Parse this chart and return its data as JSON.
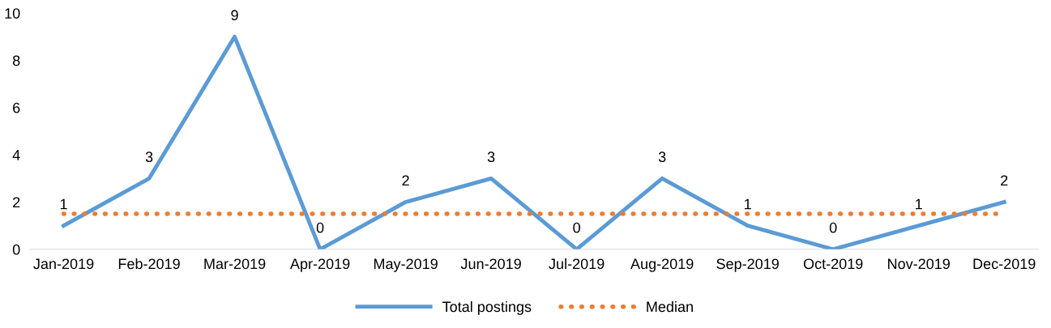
{
  "chart_data": {
    "type": "line",
    "categories": [
      "Jan-2019",
      "Feb-2019",
      "Mar-2019",
      "Apr-2019",
      "May-2019",
      "Jun-2019",
      "Jul-2019",
      "Aug-2019",
      "Sep-2019",
      "Oct-2019",
      "Nov-2019",
      "Dec-2019"
    ],
    "series": [
      {
        "name": "Total postings",
        "color": "#5b9bd5",
        "line_style": "solid",
        "data_labels": true,
        "values": [
          1,
          3,
          9,
          0,
          2,
          3,
          0,
          3,
          1,
          0,
          1,
          2
        ]
      },
      {
        "name": "Median",
        "color": "#ed7d31",
        "line_style": "dotted",
        "values": [
          1.5,
          1.5,
          1.5,
          1.5,
          1.5,
          1.5,
          1.5,
          1.5,
          1.5,
          1.5,
          1.5,
          1.5
        ]
      }
    ],
    "ylim": [
      0,
      10
    ],
    "yticks": [
      0,
      2,
      4,
      6,
      8,
      10
    ],
    "grid": false,
    "legend": "bottom",
    "marker": "none"
  }
}
